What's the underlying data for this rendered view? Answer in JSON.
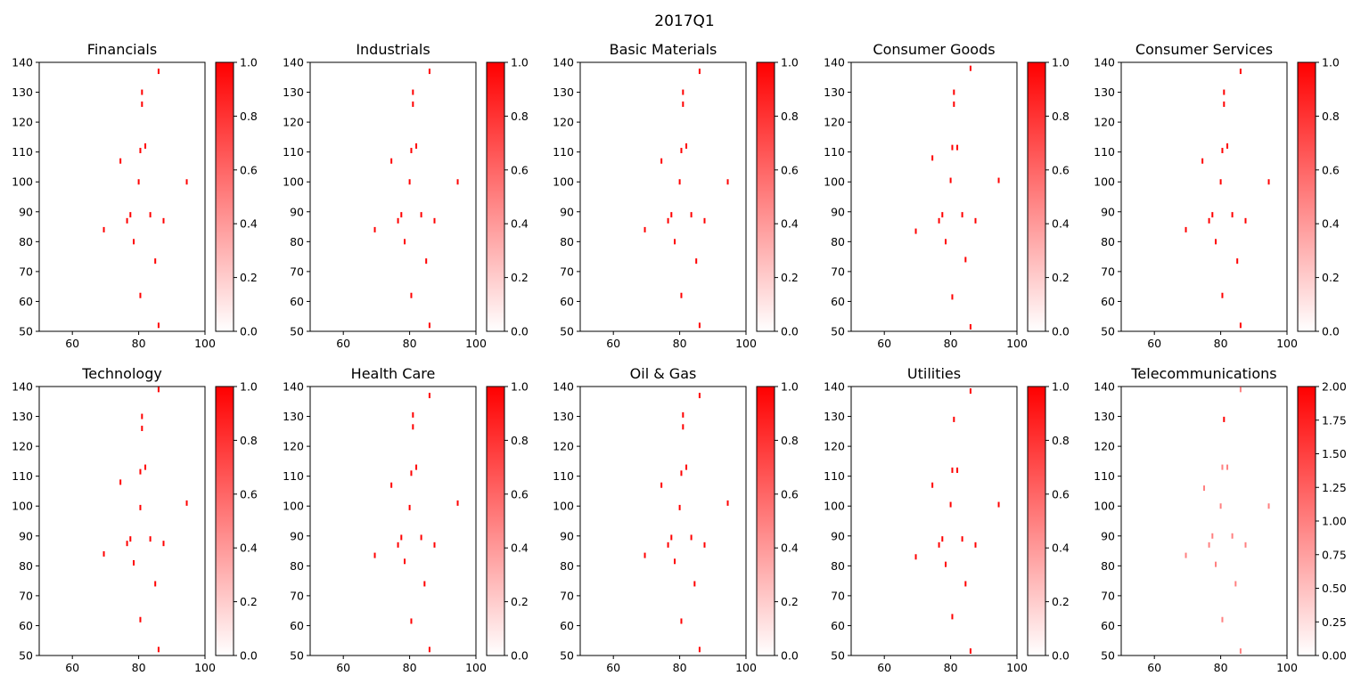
{
  "figure": {
    "suptitle": "2017Q1"
  },
  "chart_data": [
    {
      "type": "heatmap",
      "title": "Financials",
      "xlim": [
        50,
        100
      ],
      "ylim": [
        50,
        140
      ],
      "xticks": [
        "60",
        "80",
        "100"
      ],
      "yticks": [
        "50",
        "60",
        "70",
        "80",
        "90",
        "100",
        "110",
        "120",
        "130",
        "140"
      ],
      "colorbar": {
        "range": [
          0,
          1
        ],
        "ticks": [
          "0.0",
          "0.2",
          "0.4",
          "0.6",
          "0.8",
          "1.0"
        ]
      },
      "cells": [
        {
          "x": 86,
          "y": 137,
          "v": 1
        },
        {
          "x": 81,
          "y": 130,
          "v": 1
        },
        {
          "x": 81,
          "y": 126,
          "v": 1
        },
        {
          "x": 82,
          "y": 112,
          "v": 1
        },
        {
          "x": 80.5,
          "y": 110.5,
          "v": 1
        },
        {
          "x": 74.5,
          "y": 107,
          "v": 1
        },
        {
          "x": 80,
          "y": 100,
          "v": 1
        },
        {
          "x": 94.5,
          "y": 100,
          "v": 1
        },
        {
          "x": 83.5,
          "y": 89,
          "v": 1
        },
        {
          "x": 77.5,
          "y": 89,
          "v": 1
        },
        {
          "x": 76.5,
          "y": 87,
          "v": 1
        },
        {
          "x": 87.5,
          "y": 87,
          "v": 1
        },
        {
          "x": 69.5,
          "y": 84,
          "v": 1
        },
        {
          "x": 78.5,
          "y": 80,
          "v": 1
        },
        {
          "x": 85,
          "y": 73.5,
          "v": 1
        },
        {
          "x": 80.5,
          "y": 62,
          "v": 1
        },
        {
          "x": 86,
          "y": 52,
          "v": 1
        }
      ]
    },
    {
      "type": "heatmap",
      "title": "Industrials",
      "xlim": [
        50,
        100
      ],
      "ylim": [
        50,
        140
      ],
      "xticks": [
        "60",
        "80",
        "100"
      ],
      "yticks": [
        "50",
        "60",
        "70",
        "80",
        "90",
        "100",
        "110",
        "120",
        "130",
        "140"
      ],
      "colorbar": {
        "range": [
          0,
          1
        ],
        "ticks": [
          "0.0",
          "0.2",
          "0.4",
          "0.6",
          "0.8",
          "1.0"
        ]
      },
      "cells": [
        {
          "x": 86,
          "y": 137,
          "v": 1
        },
        {
          "x": 81,
          "y": 130,
          "v": 1
        },
        {
          "x": 81,
          "y": 126,
          "v": 1
        },
        {
          "x": 82,
          "y": 112,
          "v": 1
        },
        {
          "x": 80.5,
          "y": 110.5,
          "v": 1
        },
        {
          "x": 74.5,
          "y": 107,
          "v": 1
        },
        {
          "x": 80,
          "y": 100,
          "v": 1
        },
        {
          "x": 94.5,
          "y": 100,
          "v": 1
        },
        {
          "x": 83.5,
          "y": 89,
          "v": 1
        },
        {
          "x": 77.5,
          "y": 89,
          "v": 1
        },
        {
          "x": 76.5,
          "y": 87,
          "v": 1
        },
        {
          "x": 87.5,
          "y": 87,
          "v": 1
        },
        {
          "x": 69.5,
          "y": 84,
          "v": 1
        },
        {
          "x": 78.5,
          "y": 80,
          "v": 1
        },
        {
          "x": 85,
          "y": 73.5,
          "v": 1
        },
        {
          "x": 80.5,
          "y": 62,
          "v": 1
        },
        {
          "x": 86,
          "y": 52,
          "v": 1
        }
      ]
    },
    {
      "type": "heatmap",
      "title": "Basic Materials",
      "xlim": [
        50,
        100
      ],
      "ylim": [
        50,
        140
      ],
      "xticks": [
        "60",
        "80",
        "100"
      ],
      "yticks": [
        "50",
        "60",
        "70",
        "80",
        "90",
        "100",
        "110",
        "120",
        "130",
        "140"
      ],
      "colorbar": {
        "range": [
          0,
          1
        ],
        "ticks": [
          "0.0",
          "0.2",
          "0.4",
          "0.6",
          "0.8",
          "1.0"
        ]
      },
      "cells": [
        {
          "x": 86,
          "y": 137,
          "v": 1
        },
        {
          "x": 81,
          "y": 130,
          "v": 1
        },
        {
          "x": 81,
          "y": 126,
          "v": 1
        },
        {
          "x": 82,
          "y": 112,
          "v": 1
        },
        {
          "x": 80.5,
          "y": 110.5,
          "v": 1
        },
        {
          "x": 74.5,
          "y": 107,
          "v": 1
        },
        {
          "x": 80,
          "y": 100,
          "v": 1
        },
        {
          "x": 94.5,
          "y": 100,
          "v": 1
        },
        {
          "x": 83.5,
          "y": 89,
          "v": 1
        },
        {
          "x": 77.5,
          "y": 89,
          "v": 1
        },
        {
          "x": 76.5,
          "y": 87,
          "v": 1
        },
        {
          "x": 87.5,
          "y": 87,
          "v": 1
        },
        {
          "x": 69.5,
          "y": 84,
          "v": 1
        },
        {
          "x": 78.5,
          "y": 80,
          "v": 1
        },
        {
          "x": 85,
          "y": 73.5,
          "v": 1
        },
        {
          "x": 80.5,
          "y": 62,
          "v": 1
        },
        {
          "x": 86,
          "y": 52,
          "v": 1
        }
      ]
    },
    {
      "type": "heatmap",
      "title": "Consumer Goods",
      "xlim": [
        50,
        100
      ],
      "ylim": [
        50,
        140
      ],
      "xticks": [
        "60",
        "80",
        "100"
      ],
      "yticks": [
        "50",
        "60",
        "70",
        "80",
        "90",
        "100",
        "110",
        "120",
        "130",
        "140"
      ],
      "colorbar": {
        "range": [
          0,
          1
        ],
        "ticks": [
          "0.0",
          "0.2",
          "0.4",
          "0.6",
          "0.8",
          "1.0"
        ]
      },
      "cells": [
        {
          "x": 86,
          "y": 138,
          "v": 1
        },
        {
          "x": 81,
          "y": 130,
          "v": 1
        },
        {
          "x": 81,
          "y": 126,
          "v": 1
        },
        {
          "x": 80.5,
          "y": 111.5,
          "v": 1
        },
        {
          "x": 82,
          "y": 111.5,
          "v": 1
        },
        {
          "x": 74.5,
          "y": 108,
          "v": 1
        },
        {
          "x": 80,
          "y": 100.5,
          "v": 1
        },
        {
          "x": 94.5,
          "y": 100.5,
          "v": 1
        },
        {
          "x": 77.5,
          "y": 89,
          "v": 1
        },
        {
          "x": 83.5,
          "y": 89,
          "v": 1
        },
        {
          "x": 76.5,
          "y": 87,
          "v": 1
        },
        {
          "x": 87.5,
          "y": 87,
          "v": 1
        },
        {
          "x": 69.5,
          "y": 83.5,
          "v": 1
        },
        {
          "x": 78.5,
          "y": 80,
          "v": 1
        },
        {
          "x": 84.5,
          "y": 74,
          "v": 1
        },
        {
          "x": 80.5,
          "y": 61.5,
          "v": 1
        },
        {
          "x": 86,
          "y": 51.5,
          "v": 1
        }
      ]
    },
    {
      "type": "heatmap",
      "title": "Consumer Services",
      "xlim": [
        50,
        100
      ],
      "ylim": [
        50,
        140
      ],
      "xticks": [
        "60",
        "80",
        "100"
      ],
      "yticks": [
        "50",
        "60",
        "70",
        "80",
        "90",
        "100",
        "110",
        "120",
        "130",
        "140"
      ],
      "colorbar": {
        "range": [
          0,
          1
        ],
        "ticks": [
          "0.0",
          "0.2",
          "0.4",
          "0.6",
          "0.8",
          "1.0"
        ]
      },
      "cells": [
        {
          "x": 86,
          "y": 137,
          "v": 1
        },
        {
          "x": 81,
          "y": 130,
          "v": 1
        },
        {
          "x": 81,
          "y": 126,
          "v": 1
        },
        {
          "x": 82,
          "y": 112,
          "v": 1
        },
        {
          "x": 80.5,
          "y": 110.5,
          "v": 1
        },
        {
          "x": 74.5,
          "y": 107,
          "v": 1
        },
        {
          "x": 80,
          "y": 100,
          "v": 1
        },
        {
          "x": 94.5,
          "y": 100,
          "v": 1
        },
        {
          "x": 83.5,
          "y": 89,
          "v": 1
        },
        {
          "x": 77.5,
          "y": 89,
          "v": 1
        },
        {
          "x": 76.5,
          "y": 87,
          "v": 1
        },
        {
          "x": 87.5,
          "y": 87,
          "v": 1
        },
        {
          "x": 69.5,
          "y": 84,
          "v": 1
        },
        {
          "x": 78.5,
          "y": 80,
          "v": 1
        },
        {
          "x": 85,
          "y": 73.5,
          "v": 1
        },
        {
          "x": 80.5,
          "y": 62,
          "v": 1
        },
        {
          "x": 86,
          "y": 52,
          "v": 1
        }
      ]
    },
    {
      "type": "heatmap",
      "title": "Technology",
      "xlim": [
        50,
        100
      ],
      "ylim": [
        50,
        140
      ],
      "xticks": [
        "60",
        "80",
        "100"
      ],
      "yticks": [
        "50",
        "60",
        "70",
        "80",
        "90",
        "100",
        "110",
        "120",
        "130",
        "140"
      ],
      "colorbar": {
        "range": [
          0,
          1
        ],
        "ticks": [
          "0.0",
          "0.2",
          "0.4",
          "0.6",
          "0.8",
          "1.0"
        ]
      },
      "cells": [
        {
          "x": 86,
          "y": 139,
          "v": 1
        },
        {
          "x": 81,
          "y": 130,
          "v": 1
        },
        {
          "x": 81,
          "y": 126,
          "v": 1
        },
        {
          "x": 82,
          "y": 113,
          "v": 1
        },
        {
          "x": 80.5,
          "y": 111.5,
          "v": 1
        },
        {
          "x": 74.5,
          "y": 108,
          "v": 1
        },
        {
          "x": 80.5,
          "y": 99.5,
          "v": 1
        },
        {
          "x": 94.5,
          "y": 101,
          "v": 1
        },
        {
          "x": 77.5,
          "y": 89,
          "v": 1
        },
        {
          "x": 83.5,
          "y": 89,
          "v": 1
        },
        {
          "x": 76.5,
          "y": 87.5,
          "v": 1
        },
        {
          "x": 87.5,
          "y": 87.5,
          "v": 1
        },
        {
          "x": 69.5,
          "y": 84,
          "v": 1
        },
        {
          "x": 78.5,
          "y": 81,
          "v": 1
        },
        {
          "x": 85,
          "y": 74,
          "v": 1
        },
        {
          "x": 80.5,
          "y": 62,
          "v": 1
        },
        {
          "x": 86,
          "y": 52,
          "v": 1
        }
      ]
    },
    {
      "type": "heatmap",
      "title": "Health Care",
      "xlim": [
        50,
        100
      ],
      "ylim": [
        50,
        140
      ],
      "xticks": [
        "60",
        "80",
        "100"
      ],
      "yticks": [
        "50",
        "60",
        "70",
        "80",
        "90",
        "100",
        "110",
        "120",
        "130",
        "140"
      ],
      "colorbar": {
        "range": [
          0,
          1
        ],
        "ticks": [
          "0.0",
          "0.2",
          "0.4",
          "0.6",
          "0.8",
          "1.0"
        ]
      },
      "cells": [
        {
          "x": 86,
          "y": 137,
          "v": 1
        },
        {
          "x": 81,
          "y": 130.5,
          "v": 1
        },
        {
          "x": 81,
          "y": 126.5,
          "v": 1
        },
        {
          "x": 82,
          "y": 113,
          "v": 1
        },
        {
          "x": 80.5,
          "y": 111,
          "v": 1
        },
        {
          "x": 74.5,
          "y": 107,
          "v": 1
        },
        {
          "x": 80,
          "y": 99.5,
          "v": 1
        },
        {
          "x": 94.5,
          "y": 101,
          "v": 1
        },
        {
          "x": 77.5,
          "y": 89.5,
          "v": 1
        },
        {
          "x": 83.5,
          "y": 89.5,
          "v": 1
        },
        {
          "x": 76.5,
          "y": 87,
          "v": 1
        },
        {
          "x": 87.5,
          "y": 87,
          "v": 1
        },
        {
          "x": 69.5,
          "y": 83.5,
          "v": 1
        },
        {
          "x": 78.5,
          "y": 81.5,
          "v": 1
        },
        {
          "x": 84.5,
          "y": 74,
          "v": 1
        },
        {
          "x": 80.5,
          "y": 61.5,
          "v": 1
        },
        {
          "x": 86,
          "y": 52,
          "v": 1
        }
      ]
    },
    {
      "type": "heatmap",
      "title": "Oil & Gas",
      "xlim": [
        50,
        100
      ],
      "ylim": [
        50,
        140
      ],
      "xticks": [
        "60",
        "80",
        "100"
      ],
      "yticks": [
        "50",
        "60",
        "70",
        "80",
        "90",
        "100",
        "110",
        "120",
        "130",
        "140"
      ],
      "colorbar": {
        "range": [
          0,
          1
        ],
        "ticks": [
          "0.0",
          "0.2",
          "0.4",
          "0.6",
          "0.8",
          "1.0"
        ]
      },
      "cells": [
        {
          "x": 86,
          "y": 137,
          "v": 1
        },
        {
          "x": 81,
          "y": 130.5,
          "v": 1
        },
        {
          "x": 81,
          "y": 126.5,
          "v": 1
        },
        {
          "x": 82,
          "y": 113,
          "v": 1
        },
        {
          "x": 80.5,
          "y": 111,
          "v": 1
        },
        {
          "x": 74.5,
          "y": 107,
          "v": 1
        },
        {
          "x": 80,
          "y": 99.5,
          "v": 1
        },
        {
          "x": 94.5,
          "y": 101,
          "v": 1
        },
        {
          "x": 77.5,
          "y": 89.5,
          "v": 1
        },
        {
          "x": 83.5,
          "y": 89.5,
          "v": 1
        },
        {
          "x": 76.5,
          "y": 87,
          "v": 1
        },
        {
          "x": 87.5,
          "y": 87,
          "v": 1
        },
        {
          "x": 69.5,
          "y": 83.5,
          "v": 1
        },
        {
          "x": 78.5,
          "y": 81.5,
          "v": 1
        },
        {
          "x": 84.5,
          "y": 74,
          "v": 1
        },
        {
          "x": 80.5,
          "y": 61.5,
          "v": 1
        },
        {
          "x": 86,
          "y": 52,
          "v": 1
        }
      ]
    },
    {
      "type": "heatmap",
      "title": "Utilities",
      "xlim": [
        50,
        100
      ],
      "ylim": [
        50,
        140
      ],
      "xticks": [
        "60",
        "80",
        "100"
      ],
      "yticks": [
        "50",
        "60",
        "70",
        "80",
        "90",
        "100",
        "110",
        "120",
        "130",
        "140"
      ],
      "colorbar": {
        "range": [
          0,
          1
        ],
        "ticks": [
          "0.0",
          "0.2",
          "0.4",
          "0.6",
          "0.8",
          "1.0"
        ]
      },
      "cells": [
        {
          "x": 86,
          "y": 138.5,
          "v": 1
        },
        {
          "x": 81,
          "y": 129,
          "v": 1
        },
        {
          "x": 80.5,
          "y": 112,
          "v": 1
        },
        {
          "x": 82,
          "y": 112,
          "v": 1
        },
        {
          "x": 74.5,
          "y": 107,
          "v": 1
        },
        {
          "x": 80,
          "y": 100.5,
          "v": 1
        },
        {
          "x": 94.5,
          "y": 100.5,
          "v": 1
        },
        {
          "x": 77.5,
          "y": 89,
          "v": 1
        },
        {
          "x": 83.5,
          "y": 89,
          "v": 1
        },
        {
          "x": 76.5,
          "y": 87,
          "v": 1
        },
        {
          "x": 87.5,
          "y": 87,
          "v": 1
        },
        {
          "x": 69.5,
          "y": 83,
          "v": 1
        },
        {
          "x": 78.5,
          "y": 80.5,
          "v": 1
        },
        {
          "x": 84.5,
          "y": 74,
          "v": 1
        },
        {
          "x": 80.5,
          "y": 63,
          "v": 1
        },
        {
          "x": 86,
          "y": 51.5,
          "v": 1
        }
      ]
    },
    {
      "type": "heatmap",
      "title": "Telecommunications",
      "xlim": [
        50,
        100
      ],
      "ylim": [
        50,
        140
      ],
      "xticks": [
        "60",
        "80",
        "100"
      ],
      "yticks": [
        "50",
        "60",
        "70",
        "80",
        "90",
        "100",
        "110",
        "120",
        "130",
        "140"
      ],
      "colorbar": {
        "range": [
          0,
          2
        ],
        "ticks": [
          "0.00",
          "0.25",
          "0.50",
          "0.75",
          "1.00",
          "1.25",
          "1.50",
          "1.75",
          "2.00"
        ]
      },
      "cells": [
        {
          "x": 86,
          "y": 139,
          "v": 1
        },
        {
          "x": 81,
          "y": 129,
          "v": 2
        },
        {
          "x": 80.5,
          "y": 113,
          "v": 1
        },
        {
          "x": 82,
          "y": 113,
          "v": 1
        },
        {
          "x": 75,
          "y": 106,
          "v": 1
        },
        {
          "x": 80,
          "y": 100,
          "v": 1
        },
        {
          "x": 94.5,
          "y": 100,
          "v": 1
        },
        {
          "x": 77.5,
          "y": 90,
          "v": 1
        },
        {
          "x": 83.5,
          "y": 90,
          "v": 1
        },
        {
          "x": 76.5,
          "y": 87,
          "v": 1
        },
        {
          "x": 87.5,
          "y": 87,
          "v": 1
        },
        {
          "x": 69.5,
          "y": 83.5,
          "v": 1
        },
        {
          "x": 78.5,
          "y": 80.5,
          "v": 1
        },
        {
          "x": 84.5,
          "y": 74,
          "v": 1
        },
        {
          "x": 80.5,
          "y": 62,
          "v": 1
        },
        {
          "x": 86,
          "y": 51.5,
          "v": 1
        }
      ]
    }
  ]
}
